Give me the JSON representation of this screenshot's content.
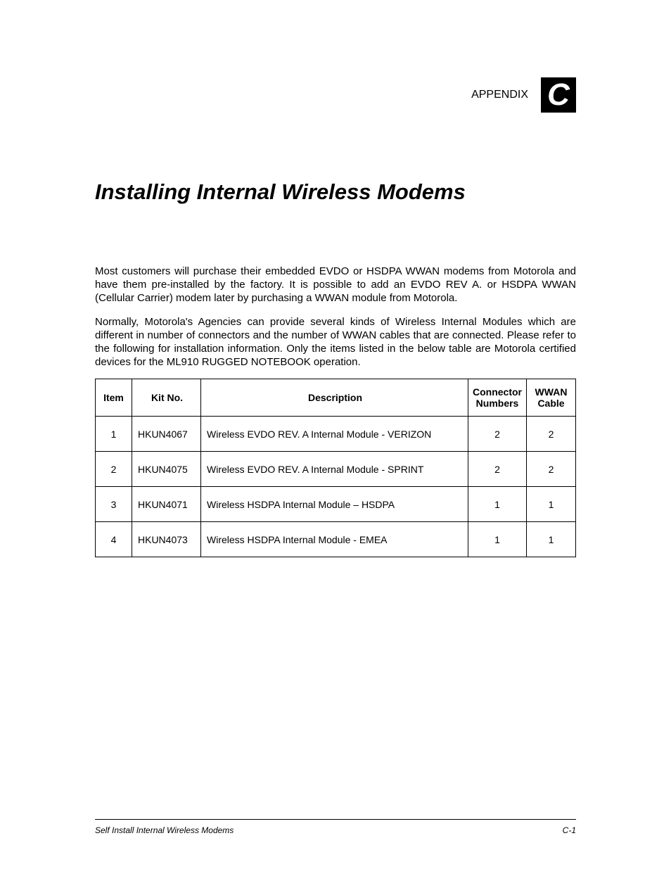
{
  "header": {
    "appendix_label": "APPENDIX",
    "appendix_letter": "C"
  },
  "title": "Installing Internal Wireless Modems",
  "paragraphs": [
    "Most customers will purchase their embedded EVDO or HSDPA WWAN modems from Motorola and have them pre-installed by the factory. It is possible to add an EVDO REV A. or HSDPA WWAN (Cellular Carrier) modem later by purchasing a WWAN module from Motorola.",
    "Normally, Motorola's Agencies can provide several kinds of Wireless Internal Modules which are different in number of connectors and the number of WWAN cables that are connected. Please refer  to the following for installation information. Only the items listed in the below table are Motorola certified devices for the ML910 RUGGED NOTEBOOK operation."
  ],
  "table": {
    "columns": [
      "Item",
      "Kit No.",
      "Description",
      "Connector Numbers",
      "WWAN Cable"
    ],
    "rows": [
      {
        "item": "1",
        "kit": "HKUN4067",
        "desc": "Wireless EVDO REV. A Internal Module - VERIZON",
        "conn": "2",
        "wwan": "2"
      },
      {
        "item": "2",
        "kit": "HKUN4075",
        "desc": "Wireless EVDO REV. A Internal Module - SPRINT",
        "conn": "2",
        "wwan": "2"
      },
      {
        "item": "3",
        "kit": "HKUN4071",
        "desc": "Wireless HSDPA Internal Module – HSDPA",
        "conn": "1",
        "wwan": "1"
      },
      {
        "item": "4",
        "kit": "HKUN4073",
        "desc": "Wireless  HSDPA Internal Module - EMEA",
        "conn": "1",
        "wwan": "1"
      }
    ]
  },
  "footer": {
    "left": "Self Install Internal Wireless Modems",
    "right": "C-1"
  }
}
